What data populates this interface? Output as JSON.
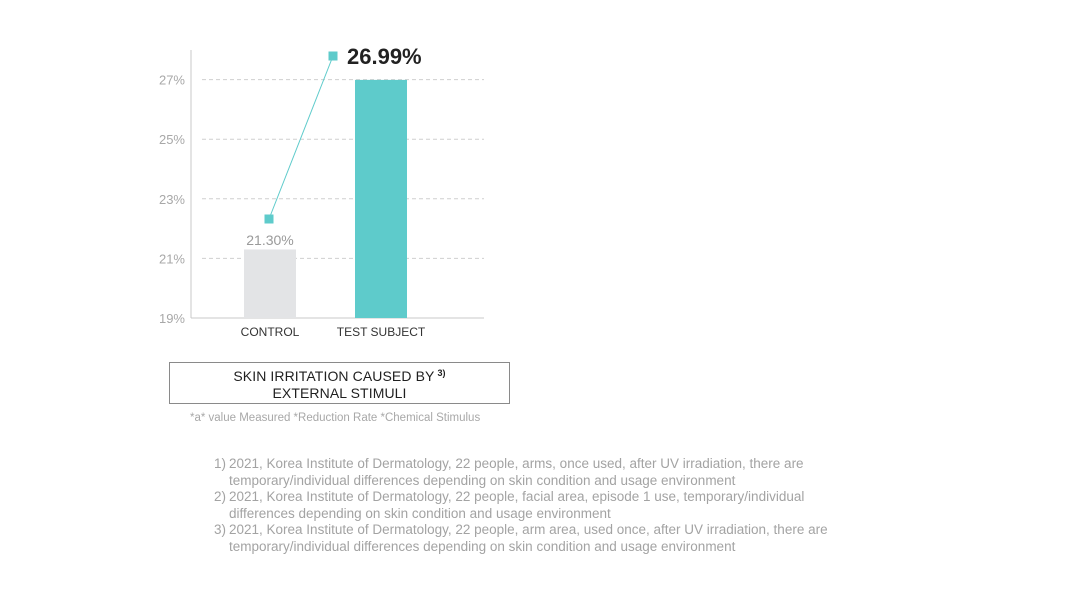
{
  "chart_data": {
    "type": "bar",
    "categories": [
      "CONTROL",
      "TEST SUBJECT"
    ],
    "values": [
      21.3,
      26.99
    ],
    "data_labels": [
      "21.30%",
      "26.99%"
    ],
    "y_ticks": [
      "19%",
      "21%",
      "23%",
      "25%",
      "27%"
    ],
    "y_tick_values": [
      19,
      21,
      23,
      25,
      27
    ],
    "ylim": [
      19,
      28
    ],
    "grid": true,
    "bar_colors": [
      "#e3e4e6",
      "#5ecbcb"
    ],
    "line_color": "#5ecbcb",
    "axis_color": "#c8c8c8",
    "title": "",
    "xlabel": "",
    "ylabel": ""
  },
  "caption": {
    "line1": "SKIN IRRITATION CAUSED BY",
    "ref": "3)",
    "line2": "EXTERNAL STIMULI"
  },
  "note": "*a* value Measured *Reduction Rate *Chemical Stimulus",
  "footnotes": [
    {
      "num": "1)",
      "text": "2021, Korea Institute of Dermatology, 22 people, arms, once used, after UV irradiation, there are temporary/individual differences depending on skin condition and usage environment"
    },
    {
      "num": "2)",
      "text": "2021, Korea Institute of Dermatology, 22 people, facial area, episode 1 use, temporary/individual differences depending on skin condition and usage environment"
    },
    {
      "num": "3)",
      "text": "2021, Korea Institute of Dermatology, 22 people, arm area, used once, after UV irradiation, there are temporary/individual differences depending on skin condition and usage environment"
    }
  ]
}
